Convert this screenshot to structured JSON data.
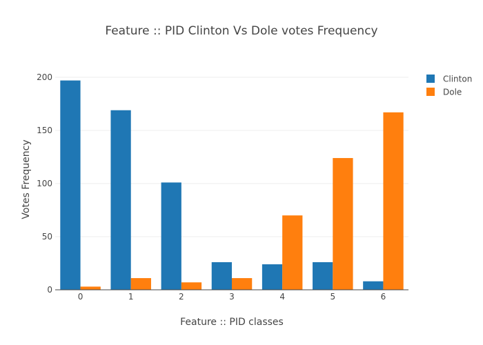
{
  "chart_data": {
    "type": "bar",
    "title": "Feature :: PID Clinton Vs Dole votes Frequency",
    "xlabel": "Feature :: PID classes",
    "ylabel": "Votes Frequency",
    "categories": [
      "0",
      "1",
      "2",
      "3",
      "4",
      "5",
      "6"
    ],
    "series": [
      {
        "name": "Clinton",
        "color": "#1f77b4",
        "values": [
          197,
          169,
          101,
          26,
          24,
          26,
          8
        ]
      },
      {
        "name": "Dole",
        "color": "#ff7f0e",
        "values": [
          3,
          11,
          7,
          11,
          70,
          124,
          167
        ]
      }
    ],
    "ylim": [
      0,
      200
    ],
    "yticks": [
      0,
      50,
      100,
      150,
      200
    ],
    "grid": true,
    "legend_position": "top-right",
    "barmode": "group"
  }
}
